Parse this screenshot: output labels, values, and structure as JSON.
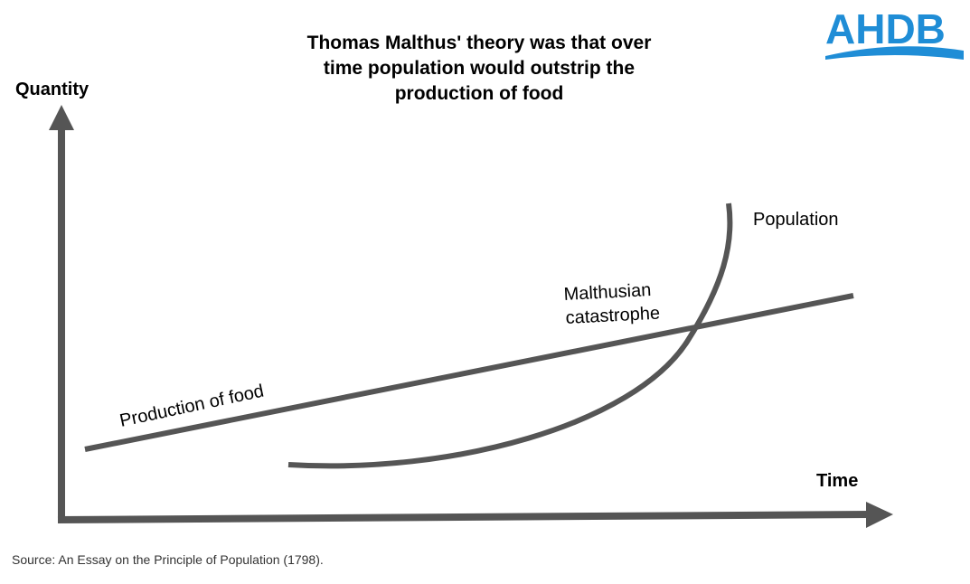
{
  "title": {
    "line1": "Thomas Malthus' theory was that over",
    "line2": "time population would outstrip the",
    "line3": "production of food"
  },
  "axes": {
    "y_label": "Quantity",
    "x_label": "Time"
  },
  "curves": {
    "food_label": "Production of food",
    "population_label": "Population",
    "intersection_label_line1": "Malthusian",
    "intersection_label_line2": "catastrophe"
  },
  "source": "Source: An Essay on the Principle of Population (1798).",
  "logo": {
    "text": "AHDB",
    "color": "#1f8dd6"
  },
  "colors": {
    "axis": "#555555",
    "curve": "#555555"
  }
}
